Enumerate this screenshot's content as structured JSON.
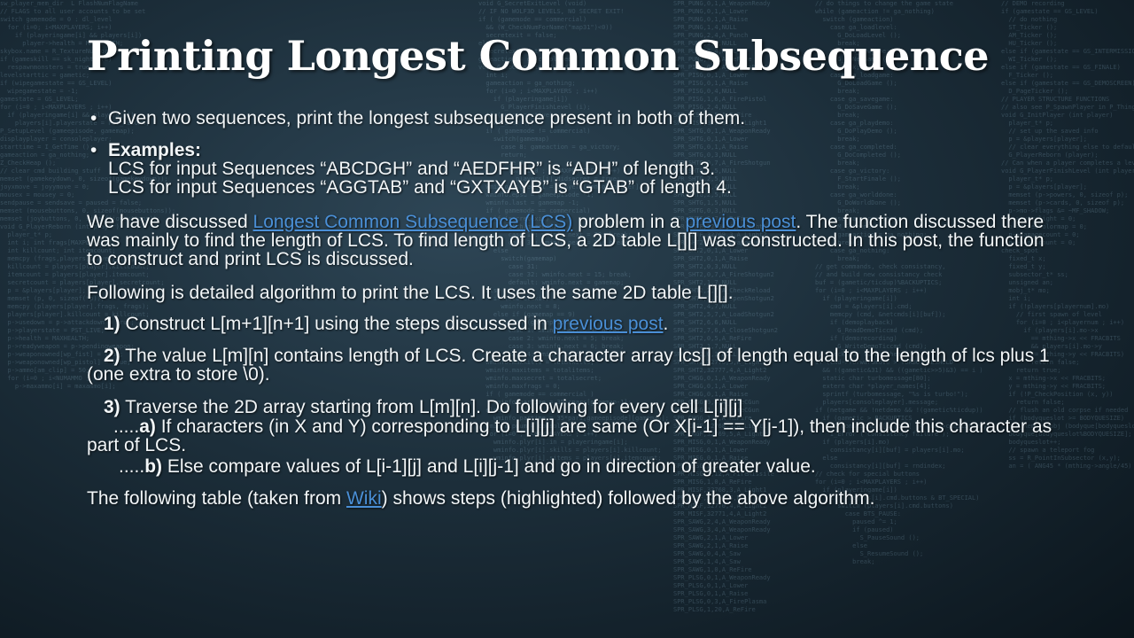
{
  "slide": {
    "title": "Printing Longest Common Subsequence",
    "bullet1": "Given two sequences, print the longest subsequence present in both of them.",
    "examples_label": "Examples:",
    "example1": "LCS for input Sequences “ABCDGH” and “AEDFHR” is “ADH” of length 3.",
    "example2": "LCS for input Sequences “AGGTAB” and “GXTXAYB” is “GTAB” of length 4.",
    "para1": {
      "pre": "We have discussed ",
      "link1": "Longest Common Subsequence (LCS)",
      "mid": " problem in a ",
      "link2": "previous post",
      "post": ". The function discussed there was mainly to find the length of LCS. To find length of LCS, a 2D table L[][] was constructed. In this post, the function to construct and print LCS is discussed."
    },
    "para2": "Following is detailed algorithm to print the LCS. It uses the same 2D table L[][].",
    "step1": {
      "num": "1)",
      "text": " Construct L[m+1][n+1] using the steps discussed in ",
      "link": "previous post",
      "end": "."
    },
    "step2": {
      "num": "2)",
      "text": " The value L[m][n] contains length of LCS. Create a character array lcs[] of length equal to the length of lcs plus 1 (one extra to store \\0)."
    },
    "step3": {
      "num": "3)",
      "text": " Traverse the 2D array starting from L[m][n]. Do following for every cell L[i][j]"
    },
    "step3a": {
      "prefix": ".....",
      "num": "a)",
      "text": " If characters (in X and Y) corresponding to L[i][j] are same (Or X[i-1] == Y[j-1]), then include this character as part of LCS."
    },
    "step3b": {
      "prefix": ".....",
      "num": "b)",
      "text": " Else compare values of L[i-1][j] and L[i][j-1] and go in direction of greater value."
    },
    "para3": {
      "pre": "The following table (taken from ",
      "link": "Wiki",
      "post": ") shows steps (highlighted) followed by the above algorithm."
    }
  }
}
